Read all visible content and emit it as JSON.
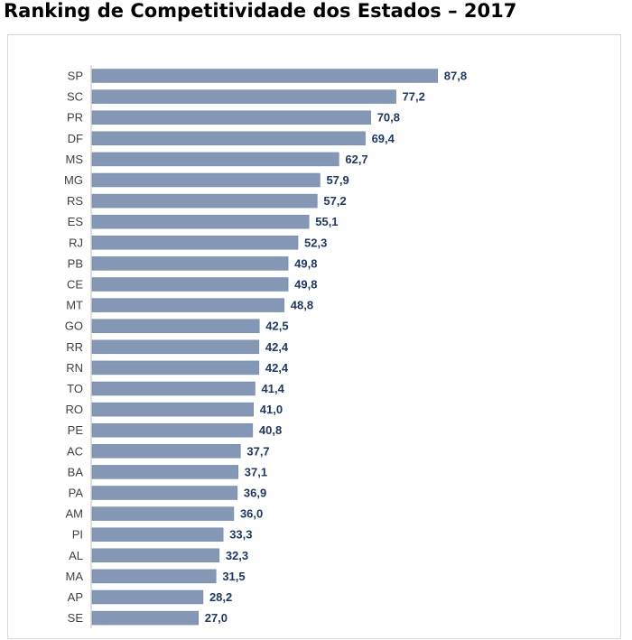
{
  "title": "Ranking de Competitividade dos Estados – 2017",
  "colors": {
    "bar": "#8497b5",
    "bar_edge": "#7385a3",
    "value_label": "#1f3864",
    "category_label": "#404040",
    "axis": "#bfbfbf"
  },
  "chart_data": {
    "type": "bar",
    "orientation": "horizontal",
    "title": "Ranking de Competitividade dos Estados – 2017",
    "xlabel": "",
    "ylabel": "",
    "xlim": [
      0,
      100
    ],
    "grid": false,
    "legend": "none",
    "categories": [
      "SP",
      "SC",
      "PR",
      "DF",
      "MS",
      "MG",
      "RS",
      "ES",
      "RJ",
      "PB",
      "CE",
      "MT",
      "GO",
      "RR",
      "RN",
      "TO",
      "RO",
      "PE",
      "AC",
      "BA",
      "PA",
      "AM",
      "PI",
      "AL",
      "MA",
      "AP",
      "SE"
    ],
    "values": [
      87.8,
      77.2,
      70.8,
      69.4,
      62.7,
      57.9,
      57.2,
      55.1,
      52.3,
      49.8,
      49.8,
      48.8,
      42.5,
      42.4,
      42.4,
      41.4,
      41.0,
      40.8,
      37.7,
      37.1,
      36.9,
      36.0,
      33.3,
      32.3,
      31.5,
      28.2,
      27.0
    ],
    "value_labels": [
      "87,8",
      "77,2",
      "70,8",
      "69,4",
      "62,7",
      "57,9",
      "57,2",
      "55,1",
      "52,3",
      "49,8",
      "49,8",
      "48,8",
      "42,5",
      "42,4",
      "42,4",
      "41,4",
      "41,0",
      "40,8",
      "37,7",
      "37,1",
      "36,9",
      "36,0",
      "33,3",
      "32,3",
      "31,5",
      "28,2",
      "27,0"
    ]
  }
}
